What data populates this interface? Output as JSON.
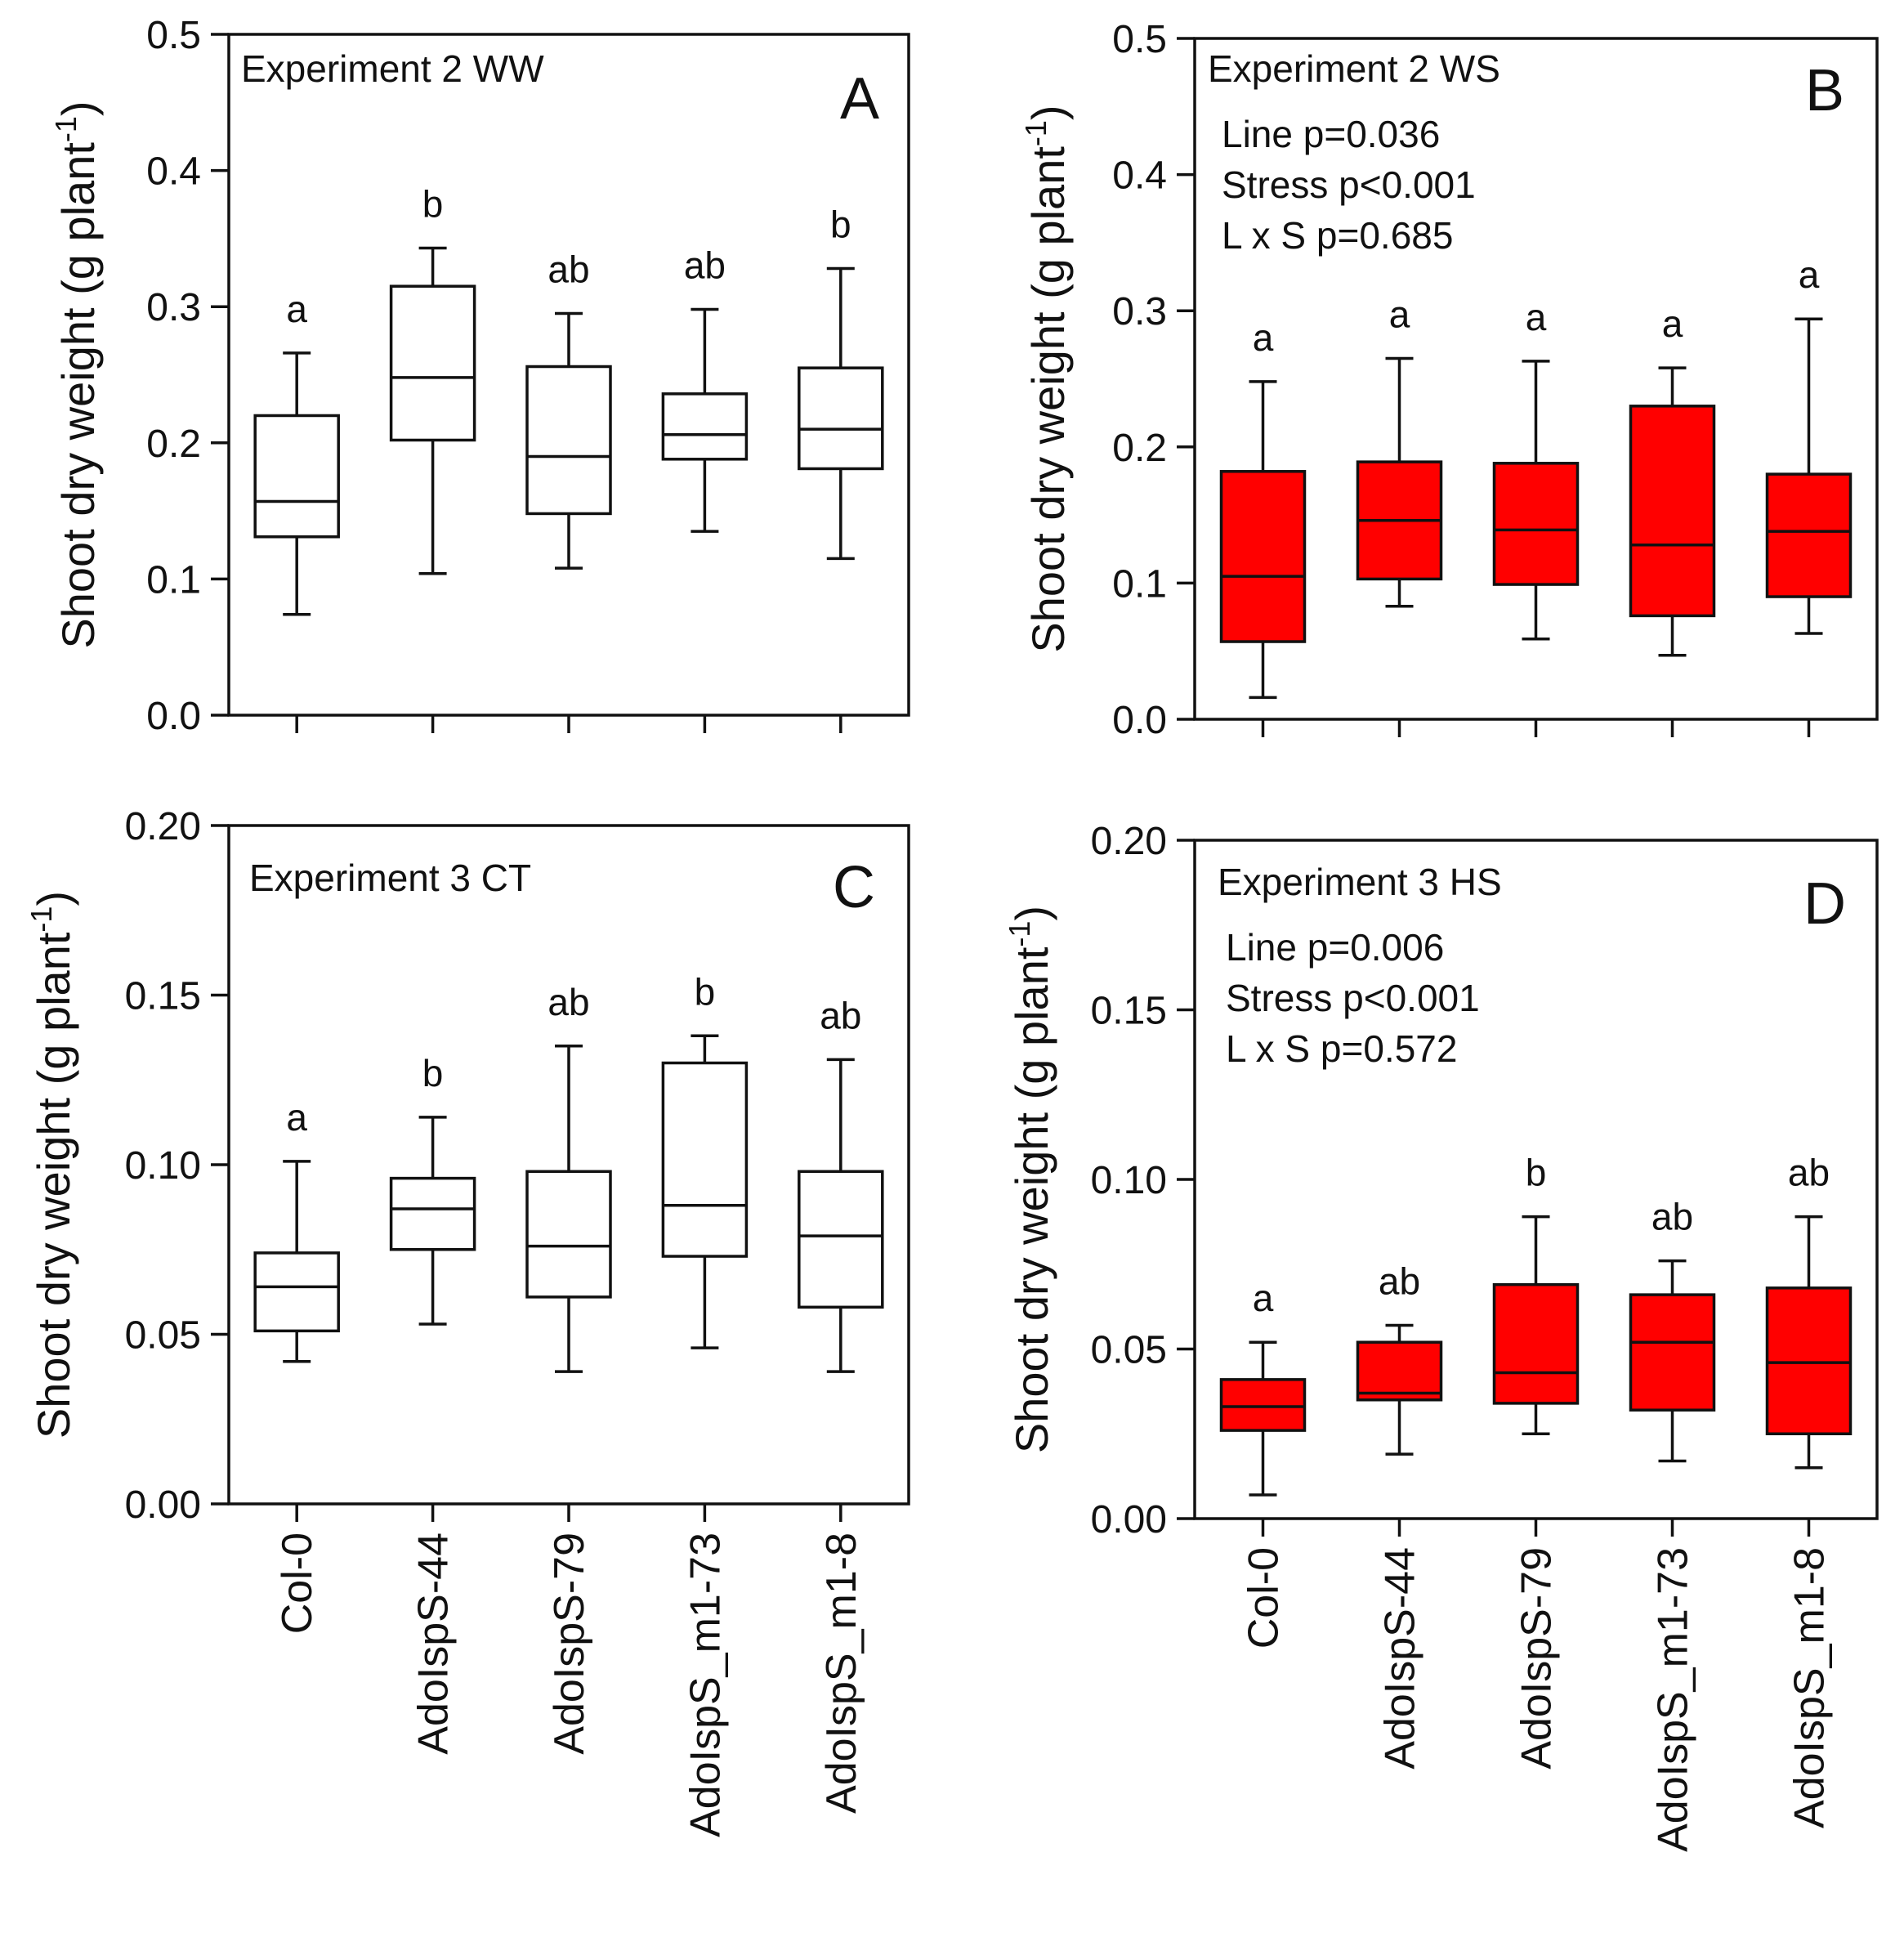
{
  "figure": {
    "categories": [
      "Col-0",
      "AdoIspS-44",
      "AdoIspS-79",
      "AdoIspS_m1-73",
      "AdoIspS_m1-8"
    ]
  },
  "colors": {
    "ws_box": "#ff0000",
    "ww_box": "#ffffff",
    "axis": "#111111"
  },
  "chart_data": [
    {
      "type": "box",
      "panel": "A",
      "title": "Experiment 2 WW",
      "ylabel": "Shoot dry weight (g plant",
      "ylabel_sup": "-1",
      "ylabel_close": ")",
      "ylim": [
        0,
        0.5
      ],
      "yticks": [
        "0.0",
        "0.1",
        "0.2",
        "0.3",
        "0.4",
        "0.5"
      ],
      "yticks_values": [
        0,
        0.1,
        0.2,
        0.3,
        0.4,
        0.5
      ],
      "fill": "white",
      "stats": [],
      "categories": [
        "Col-0",
        "AdoIspS-44",
        "AdoIspS-79",
        "AdoIspS_m1-73",
        "AdoIspS_m1-8"
      ],
      "boxes": [
        {
          "min": 0.074,
          "q1": 0.131,
          "median": 0.157,
          "q3": 0.22,
          "max": 0.266,
          "letter": "a"
        },
        {
          "min": 0.104,
          "q1": 0.202,
          "median": 0.248,
          "q3": 0.315,
          "max": 0.343,
          "letter": "b"
        },
        {
          "min": 0.108,
          "q1": 0.148,
          "median": 0.19,
          "q3": 0.256,
          "max": 0.295,
          "letter": "ab"
        },
        {
          "min": 0.135,
          "q1": 0.188,
          "median": 0.206,
          "q3": 0.236,
          "max": 0.298,
          "letter": "ab"
        },
        {
          "min": 0.115,
          "q1": 0.181,
          "median": 0.21,
          "q3": 0.255,
          "max": 0.328,
          "letter": "b"
        }
      ]
    },
    {
      "type": "box",
      "panel": "B",
      "title": "Experiment 2 WS",
      "ylabel": "Shoot dry weight (g plant",
      "ylabel_sup": "-1",
      "ylabel_close": ")",
      "ylim": [
        0,
        0.5
      ],
      "yticks": [
        "0.0",
        "0.1",
        "0.2",
        "0.3",
        "0.4",
        "0.5"
      ],
      "yticks_values": [
        0,
        0.1,
        0.2,
        0.3,
        0.4,
        0.5
      ],
      "fill": "red",
      "stats": [
        "Line p=0.036",
        "Stress p<0.001",
        "L x S p=0.685"
      ],
      "categories": [
        "Col-0",
        "AdoIspS-44",
        "AdoIspS-79",
        "AdoIspS_m1-73",
        "AdoIspS_m1-8"
      ],
      "boxes": [
        {
          "min": 0.016,
          "q1": 0.057,
          "median": 0.105,
          "q3": 0.182,
          "max": 0.248,
          "letter": "a"
        },
        {
          "min": 0.083,
          "q1": 0.103,
          "median": 0.146,
          "q3": 0.189,
          "max": 0.265,
          "letter": "a"
        },
        {
          "min": 0.059,
          "q1": 0.099,
          "median": 0.139,
          "q3": 0.188,
          "max": 0.263,
          "letter": "a"
        },
        {
          "min": 0.047,
          "q1": 0.076,
          "median": 0.128,
          "q3": 0.23,
          "max": 0.258,
          "letter": "a"
        },
        {
          "min": 0.063,
          "q1": 0.09,
          "median": 0.138,
          "q3": 0.18,
          "max": 0.294,
          "letter": "a"
        }
      ]
    },
    {
      "type": "box",
      "panel": "C",
      "title": "Experiment 3 CT",
      "ylabel": "Shoot dry weight (g plant",
      "ylabel_sup": "-1",
      "ylabel_close": ")",
      "ylim": [
        0,
        0.2
      ],
      "yticks": [
        "0.00",
        "0.05",
        "0.10",
        "0.15",
        "0.20"
      ],
      "yticks_values": [
        0,
        0.05,
        0.1,
        0.15,
        0.2
      ],
      "fill": "white",
      "stats": [],
      "categories": [
        "Col-0",
        "AdoIspS-44",
        "AdoIspS-79",
        "AdoIspS_m1-73",
        "AdoIspS_m1-8"
      ],
      "boxes": [
        {
          "min": 0.042,
          "q1": 0.051,
          "median": 0.064,
          "q3": 0.074,
          "max": 0.101,
          "letter": "a"
        },
        {
          "min": 0.053,
          "q1": 0.075,
          "median": 0.087,
          "q3": 0.096,
          "max": 0.114,
          "letter": "b"
        },
        {
          "min": 0.039,
          "q1": 0.061,
          "median": 0.076,
          "q3": 0.098,
          "max": 0.135,
          "letter": "ab"
        },
        {
          "min": 0.046,
          "q1": 0.073,
          "median": 0.088,
          "q3": 0.13,
          "max": 0.138,
          "letter": "b"
        },
        {
          "min": 0.039,
          "q1": 0.058,
          "median": 0.079,
          "q3": 0.098,
          "max": 0.131,
          "letter": "ab"
        }
      ]
    },
    {
      "type": "box",
      "panel": "D",
      "title": "Experiment 3 HS",
      "ylabel": "Shoot dry weight (g plant",
      "ylabel_sup": "-1",
      "ylabel_close": ")",
      "ylim": [
        0,
        0.2
      ],
      "yticks": [
        "0.00",
        "0.05",
        "0.10",
        "0.15",
        "0.20"
      ],
      "yticks_values": [
        0,
        0.05,
        0.1,
        0.15,
        0.2
      ],
      "fill": "red",
      "stats": [
        "Line p=0.006",
        "Stress p<0.001",
        "L x S p=0.572"
      ],
      "categories": [
        "Col-0",
        "AdoIspS-44",
        "AdoIspS-79",
        "AdoIspS_m1-73",
        "AdoIspS_m1-8"
      ],
      "boxes": [
        {
          "min": 0.007,
          "q1": 0.026,
          "median": 0.033,
          "q3": 0.041,
          "max": 0.052,
          "letter": "a"
        },
        {
          "min": 0.019,
          "q1": 0.035,
          "median": 0.037,
          "q3": 0.052,
          "max": 0.057,
          "letter": "ab"
        },
        {
          "min": 0.025,
          "q1": 0.034,
          "median": 0.043,
          "q3": 0.069,
          "max": 0.089,
          "letter": "b"
        },
        {
          "min": 0.017,
          "q1": 0.032,
          "median": 0.052,
          "q3": 0.066,
          "max": 0.076,
          "letter": "ab"
        },
        {
          "min": 0.015,
          "q1": 0.025,
          "median": 0.046,
          "q3": 0.068,
          "max": 0.089,
          "letter": "ab"
        }
      ]
    }
  ]
}
